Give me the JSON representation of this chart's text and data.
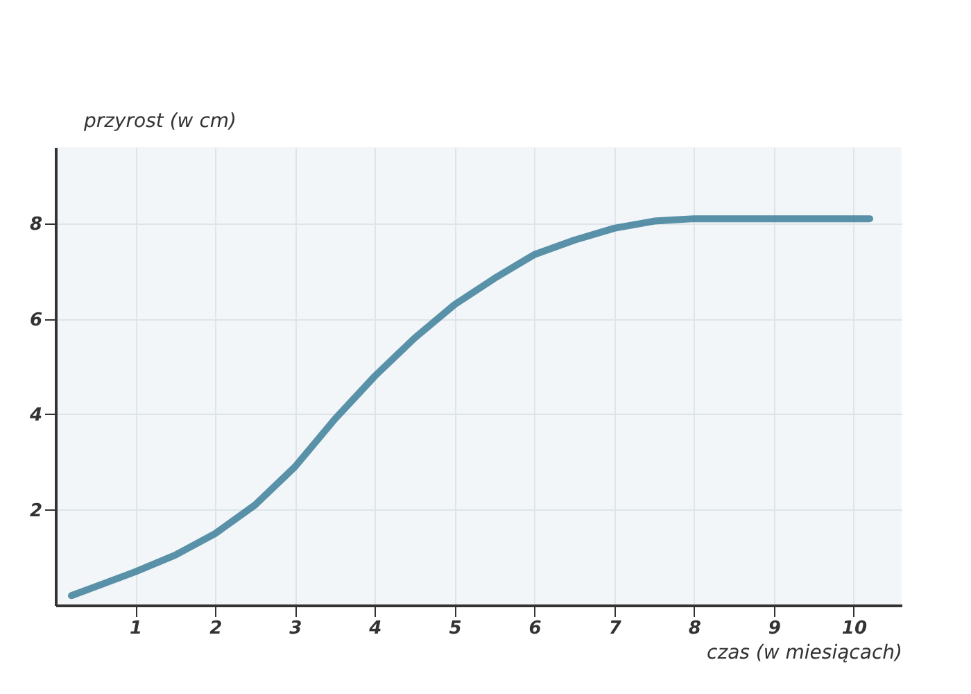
{
  "chart_data": {
    "type": "line",
    "xlabel": "czas (w miesiącach)",
    "ylabel": "przyrost (w cm)",
    "x": [
      0.2,
      0.6,
      1,
      1.5,
      2,
      2.5,
      3,
      3.5,
      4,
      4.5,
      5,
      5.5,
      6,
      6.5,
      7,
      7.5,
      8,
      8.5,
      9,
      9.5,
      10,
      10.2
    ],
    "series": [
      {
        "color": "#3d7f9a",
        "values": [
          0.2,
          0.45,
          0.7,
          1.05,
          1.5,
          2.1,
          2.9,
          3.9,
          4.8,
          5.6,
          6.3,
          6.85,
          7.35,
          7.65,
          7.9,
          8.05,
          8.1,
          8.1,
          8.1,
          8.1,
          8.1,
          8.1
        ]
      }
    ],
    "xlim": [
      0,
      10.6
    ],
    "ylim": [
      0,
      9.6
    ],
    "xticks": [
      1,
      2,
      3,
      4,
      5,
      6,
      7,
      8,
      9,
      10
    ],
    "yticks": [
      2,
      4,
      6,
      8
    ],
    "grid": true,
    "marker": "none",
    "line_style": "solid"
  }
}
